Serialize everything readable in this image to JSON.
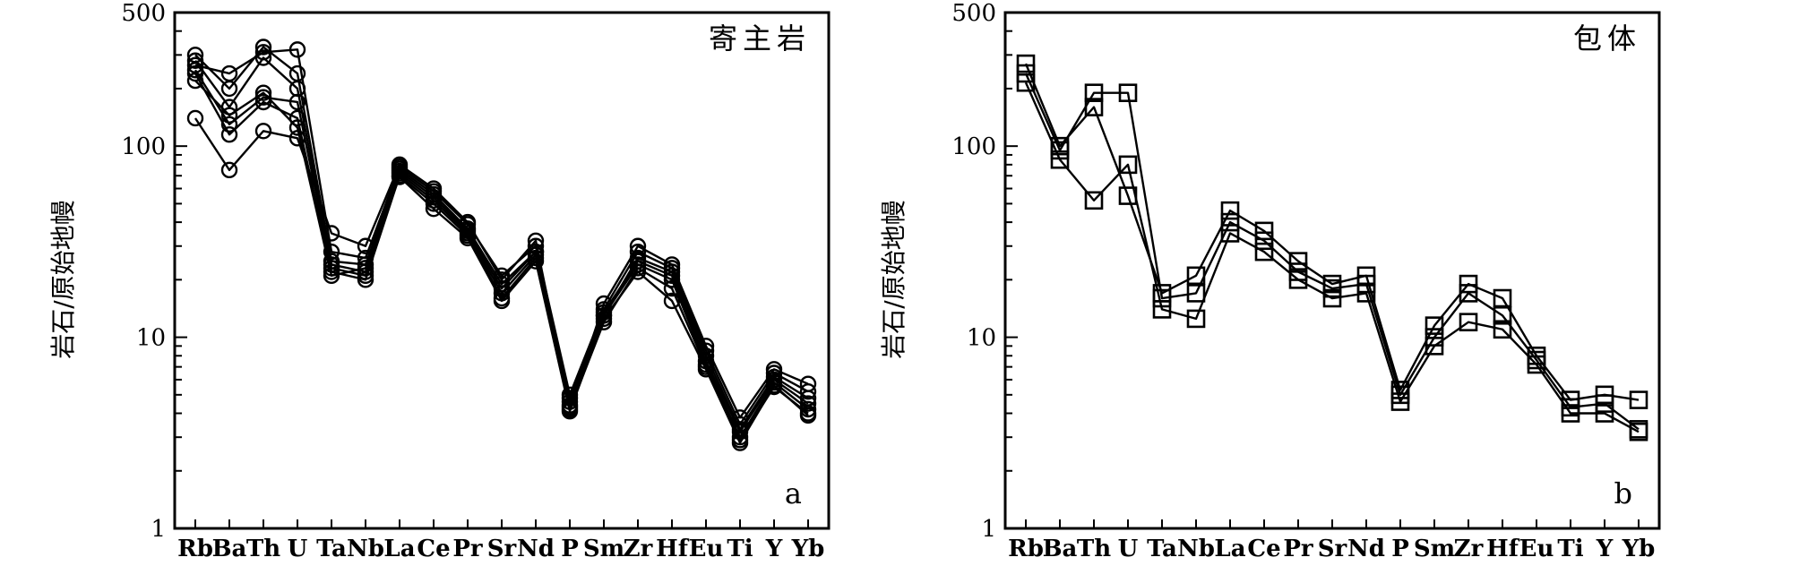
{
  "chart_data": [
    {
      "type": "line",
      "panel": "a",
      "title": "寄主岩",
      "ylabel": "岩石/原始地幔",
      "yscale": "log",
      "ylim": [
        1,
        500
      ],
      "yticks": [
        "1",
        "10",
        "100",
        "500"
      ],
      "marker": "circle",
      "categories": [
        "Rb",
        "Ba",
        "Th",
        "U",
        "Ta",
        "Nb",
        "La",
        "Ce",
        "Pr",
        "Sr",
        "Nd",
        "P",
        "Sm",
        "Zr",
        "Hf",
        "Eu",
        "Ti",
        "Y",
        "Yb"
      ],
      "series": [
        {
          "values": [
            140,
            75,
            120,
            110,
            35,
            30,
            80,
            60,
            40,
            20,
            32,
            4.3,
            15,
            30,
            24,
            9,
            3.8,
            6.8,
            5.7
          ]
        },
        {
          "values": [
            265,
            240,
            310,
            320,
            28,
            26,
            78,
            58,
            39,
            21,
            30,
            5.0,
            14,
            28,
            23,
            8.5,
            3.5,
            6.5,
            5.2
          ]
        },
        {
          "values": [
            300,
            200,
            330,
            240,
            25,
            24,
            76,
            56,
            37,
            19,
            28,
            4.8,
            13,
            26,
            22,
            8,
            3.3,
            6.2,
            4.8
          ]
        },
        {
          "values": [
            280,
            160,
            290,
            200,
            24,
            22,
            74,
            54,
            36,
            18,
            28,
            4.6,
            13.5,
            25,
            21,
            7.5,
            3.2,
            6.0,
            4.5
          ]
        },
        {
          "values": [
            250,
            130,
            180,
            170,
            23,
            21,
            72,
            52,
            35,
            17,
            27,
            4.4,
            13,
            24,
            20,
            7.2,
            3.0,
            5.8,
            4.2
          ]
        },
        {
          "values": [
            240,
            115,
            170,
            140,
            22,
            20,
            70,
            50,
            34,
            16,
            26,
            4.2,
            12,
            23,
            18,
            7.0,
            2.9,
            5.5,
            4.0
          ]
        },
        {
          "values": [
            220,
            145,
            190,
            125,
            21,
            23,
            69,
            47,
            33,
            15.5,
            25,
            4.1,
            12.5,
            22,
            15.5,
            6.8,
            2.8,
            5.6,
            3.9
          ]
        }
      ]
    },
    {
      "type": "line",
      "panel": "b",
      "title": "包体",
      "ylabel": "岩石/原始地幔",
      "yscale": "log",
      "ylim": [
        1,
        500
      ],
      "yticks": [
        "1",
        "10",
        "100",
        "500"
      ],
      "marker": "square",
      "categories": [
        "Rb",
        "Ba",
        "Th",
        "U",
        "Ta",
        "Nb",
        "La",
        "Ce",
        "Pr",
        "Sr",
        "Nd",
        "P",
        "Sm",
        "Zr",
        "Hf",
        "Eu",
        "Ti",
        "Y",
        "Yb"
      ],
      "series": [
        {
          "values": [
            270,
            100,
            160,
            55,
            17,
            21,
            46,
            36,
            25,
            19,
            21,
            5.3,
            11.5,
            19,
            16,
            8.0,
            4.7,
            5.0,
            4.7
          ]
        },
        {
          "values": [
            240,
            95,
            190,
            190,
            16,
            17,
            40,
            32,
            22,
            18,
            19,
            5.0,
            10,
            17,
            13,
            7.6,
            4.3,
            4.5,
            3.3
          ]
        },
        {
          "values": [
            215,
            85,
            52,
            80,
            14,
            12.5,
            35,
            28,
            20,
            16,
            17,
            4.6,
            9,
            12,
            11,
            7.2,
            4.0,
            4.0,
            3.2
          ]
        }
      ]
    }
  ]
}
